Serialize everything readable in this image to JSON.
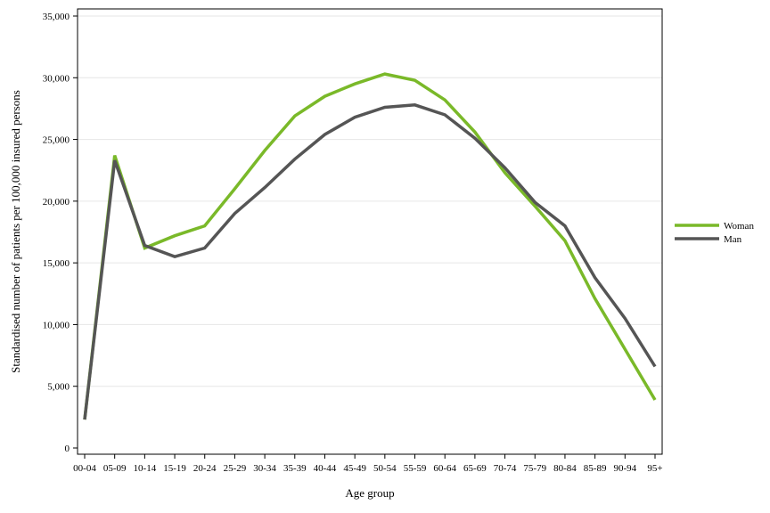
{
  "chart_data": {
    "type": "line",
    "title": "",
    "xlabel": "Age group",
    "ylabel": "Standardised number of patients per 100,000 insured persons",
    "categories": [
      "00-04",
      "05-09",
      "10-14",
      "15-19",
      "20-24",
      "25-29",
      "30-34",
      "35-39",
      "40-44",
      "45-49",
      "50-54",
      "55-59",
      "60-64",
      "65-69",
      "70-74",
      "75-79",
      "80-84",
      "85-89",
      "90-94",
      "95+"
    ],
    "ylim": [
      0,
      35000
    ],
    "yticks": [
      0,
      5000,
      10000,
      15000,
      20000,
      25000,
      30000,
      35000
    ],
    "ytick_labels": [
      "0",
      "5,000",
      "10,000",
      "15,000",
      "20,000",
      "25,000",
      "30,000",
      "35,000"
    ],
    "grid": true,
    "legend_position": "right",
    "series": [
      {
        "name": "Woman",
        "color": "#7ab929",
        "values": [
          2300,
          23700,
          16200,
          17200,
          18000,
          21000,
          24100,
          26900,
          28500,
          29500,
          30300,
          29800,
          28200,
          25600,
          22300,
          19600,
          16800,
          12100,
          8000,
          3900
        ]
      },
      {
        "name": "Man",
        "color": "#555555",
        "values": [
          2300,
          23300,
          16400,
          15500,
          16200,
          19000,
          21100,
          23400,
          25400,
          26800,
          27600,
          27800,
          27000,
          25100,
          22700,
          19900,
          18000,
          13800,
          10500,
          6600
        ]
      }
    ]
  }
}
